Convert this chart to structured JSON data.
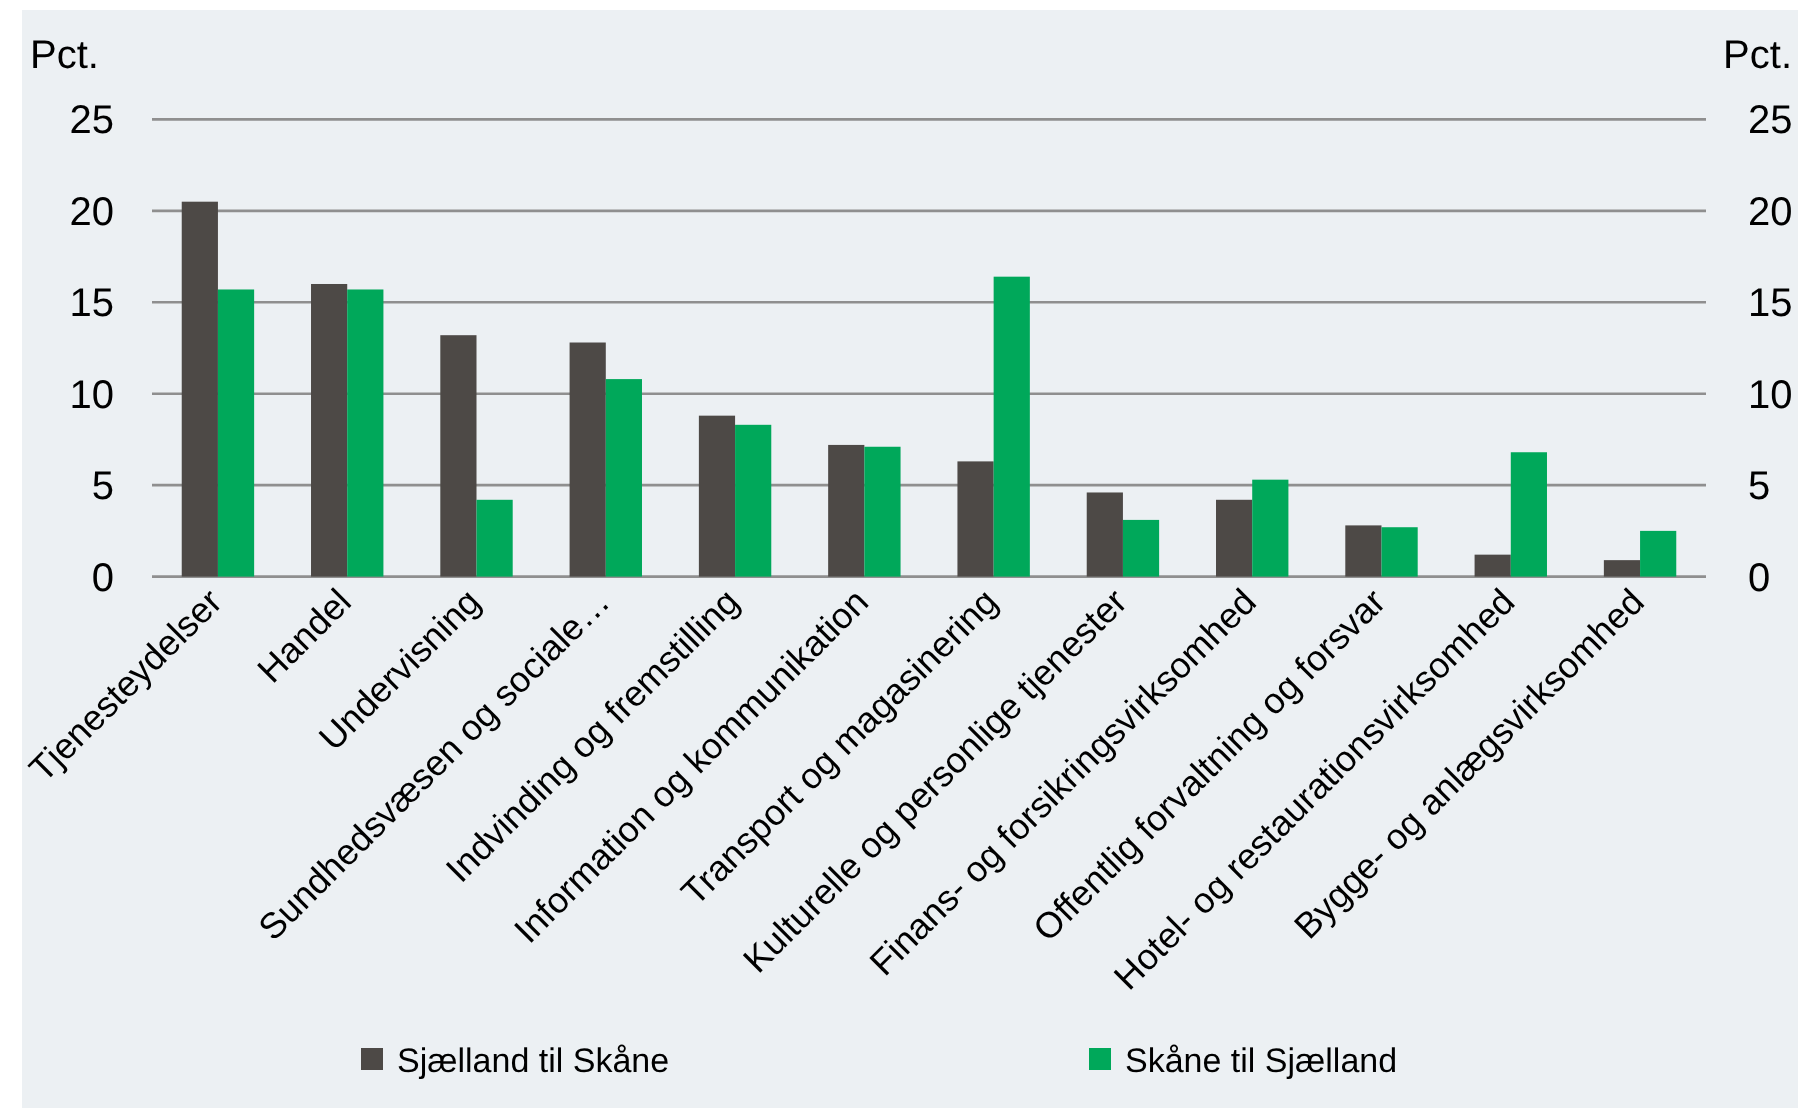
{
  "chart_data": {
    "type": "bar",
    "ylabel": "Pct.",
    "y2label": "Pct.",
    "categories": [
      "Tjenesteydelser",
      "Handel",
      "Undervisning",
      "Sundhedsvæsen og sociale…",
      "Indvinding og fremstilling",
      "Information og kommunikation",
      "Transport og magasinering",
      "Kulturelle og personlige tjenester",
      "Finans- og forsikringsvirksomhed",
      "Offentlig forvaltning og forsvar",
      "Hotel- og restaurationsvirksomhed",
      "Bygge- og anlægsvirksomhed"
    ],
    "series": [
      {
        "name": "Sjælland til Skåne",
        "color": "#4d4946",
        "values": [
          20.5,
          16.0,
          13.2,
          12.8,
          8.8,
          7.2,
          6.3,
          4.6,
          4.2,
          2.8,
          1.2,
          0.9
        ]
      },
      {
        "name": "Skåne til Sjælland",
        "color": "#00a85a",
        "values": [
          15.7,
          15.7,
          4.2,
          10.8,
          8.3,
          7.1,
          16.4,
          3.1,
          5.3,
          2.7,
          6.8,
          2.5
        ]
      }
    ],
    "ylim": [
      0,
      25
    ],
    "yticks": [
      0,
      5,
      10,
      15,
      20,
      25
    ],
    "y2lim": [
      0,
      25
    ],
    "y2ticks": [
      0,
      5,
      10,
      15,
      20,
      25
    ],
    "grid": "y",
    "legend": "bottom"
  }
}
